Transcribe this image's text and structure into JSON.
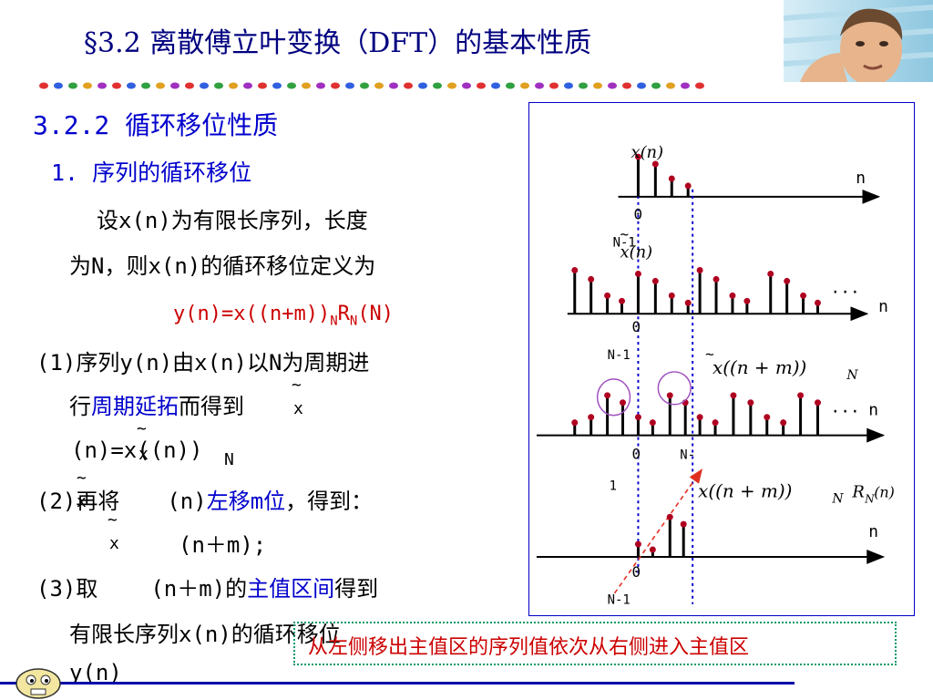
{
  "title": "§3.2  离散傅立叶变换（DFT）的基本性质",
  "section": "3.2.2  循环移位性质",
  "subsection": "1. 序列的循环移位",
  "body": {
    "line1": "设x(n)为有限长序列，长度",
    "line2": "为N，则x(n)的循环移位定义为",
    "formula_main": "y(n)=x((n+m))",
    "formula_sub1": "N",
    "formula_mid": "R",
    "formula_sub2": "N",
    "formula_end": "(N)",
    "p1a": "(1)序列y(n)由x(n)以N为周期进",
    "p1b_pre": "行",
    "p1b_blue": "周期延拓",
    "p1b_post": "而得到",
    "tilde": "~",
    "x_letter": "x",
    "p1c": "(n)=x((n))",
    "p1c_sub": "N",
    "p2_pre": "(2)再将",
    "p2_mid": "(n)",
    "p2_blue": "左移m位",
    "p2_post": "，得到：",
    "p2b": "(n＋m);",
    "p3_pre": "(3)取",
    "p3_mid": "(n＋m)的",
    "p3_blue": "主值区间",
    "p3_post": "得到",
    "p4": "有限长序列x(n)的循环移位",
    "p5": "y(n)"
  },
  "diagram": {
    "label_xn": "x(n)",
    "label_n": "n",
    "label_0": "0",
    "label_n1": "N-1",
    "label_dots": "···",
    "label_xnm": "x((n + m))",
    "label_sub_N": "N",
    "label_R": "R",
    "label_Rn": "(n)",
    "label_N_minus": "N-",
    "label_1": "1",
    "tilde": "~"
  },
  "note": "从左侧移出主值区的序列值依次从右侧进入主值区",
  "colors": {
    "title": "#000080",
    "heading": "#0000cc",
    "formula": "#cc0000",
    "stem_dot": "#b00020",
    "dotted_guide": "#0000cc",
    "note_border": "#009966",
    "note_text": "#cc0000"
  }
}
